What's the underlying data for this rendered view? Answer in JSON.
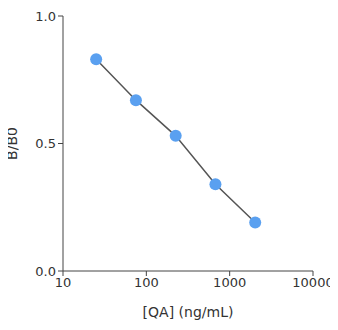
{
  "chart_data": {
    "type": "line",
    "x": [
      25,
      75,
      225,
      675,
      2025
    ],
    "values": [
      0.83,
      0.67,
      0.53,
      0.34,
      0.19
    ],
    "color": "#5aa0f0",
    "marker": "circle",
    "log": "x",
    "xlim": [
      10,
      10000
    ],
    "xticks": [
      10,
      100,
      1000,
      10000
    ],
    "ylim": [
      0,
      1
    ],
    "yticks": [
      {
        "value": 0,
        "label": "0.0"
      },
      {
        "value": 0.5,
        "label": "0.5"
      },
      {
        "value": 1,
        "label": "1.0"
      }
    ],
    "x_label": "[QA] (ng/mL)",
    "y_label": "B/B0",
    "grid": false
  }
}
